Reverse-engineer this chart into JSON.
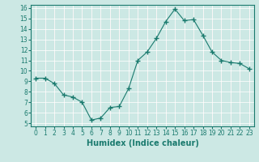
{
  "x": [
    0,
    1,
    2,
    3,
    4,
    5,
    6,
    7,
    8,
    9,
    10,
    11,
    12,
    13,
    14,
    15,
    16,
    17,
    18,
    19,
    20,
    21,
    22,
    23
  ],
  "y": [
    9.3,
    9.3,
    8.8,
    7.7,
    7.5,
    7.0,
    5.3,
    5.5,
    6.5,
    6.6,
    8.3,
    11.0,
    11.8,
    13.1,
    14.7,
    15.9,
    14.8,
    14.9,
    13.4,
    11.8,
    11.0,
    10.8,
    10.7,
    10.2
  ],
  "line_color": "#1a7a6e",
  "marker": "+",
  "marker_size": 4,
  "bg_color": "#cce8e4",
  "grid_color": "#b0d4cf",
  "grid_color2": "#e8c8c8",
  "xlabel": "Humidex (Indice chaleur)",
  "ylim_min": 5,
  "ylim_max": 16,
  "xlim_min": 0,
  "xlim_max": 23,
  "yticks": [
    5,
    6,
    7,
    8,
    9,
    10,
    11,
    12,
    13,
    14,
    15,
    16
  ],
  "xticks": [
    0,
    1,
    2,
    3,
    4,
    5,
    6,
    7,
    8,
    9,
    10,
    11,
    12,
    13,
    14,
    15,
    16,
    17,
    18,
    19,
    20,
    21,
    22,
    23
  ],
  "tick_color": "#1a7a6e",
  "label_fontsize": 5.5,
  "xlabel_fontsize": 7
}
